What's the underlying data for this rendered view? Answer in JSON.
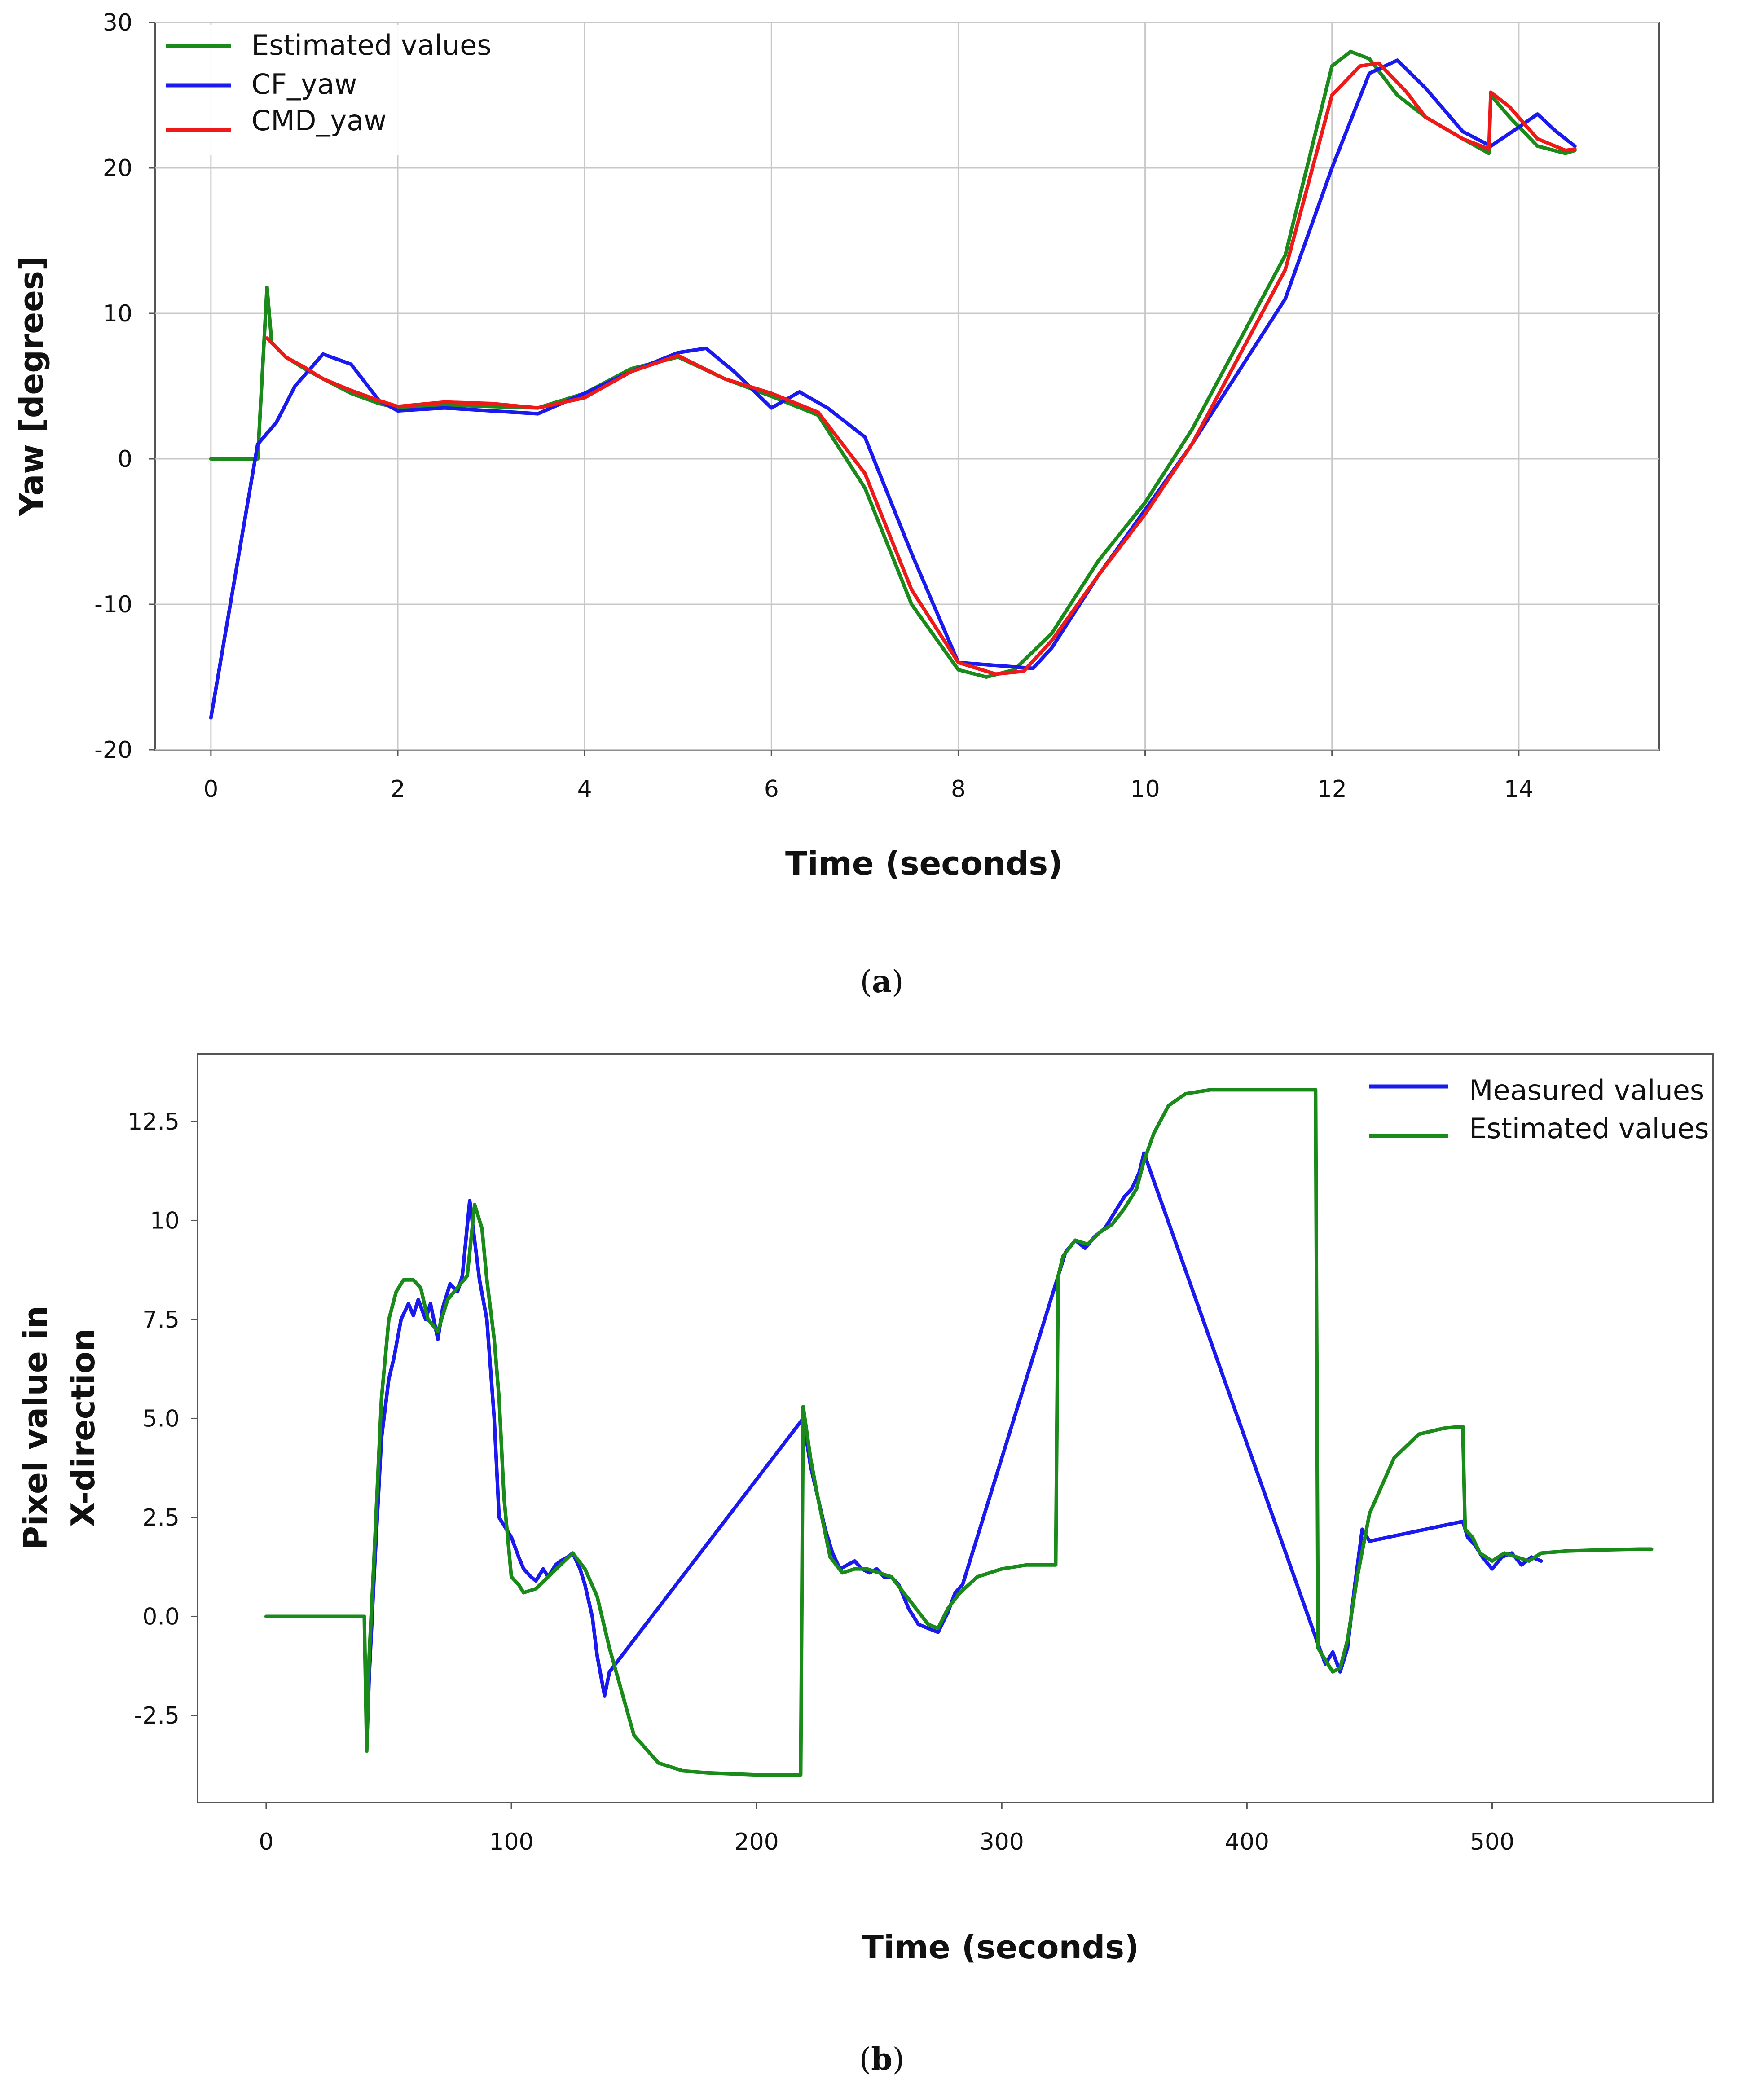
{
  "chart_data": [
    {
      "type": "line",
      "caption": "a",
      "xlabel": "Time (seconds)",
      "ylabel": "Yaw [degrees]",
      "xlim": [
        -0.6,
        15.5
      ],
      "ylim": [
        -20,
        30
      ],
      "xticks": [
        0,
        2,
        4,
        6,
        8,
        10,
        12,
        14
      ],
      "yticks": [
        -20,
        -10,
        0,
        10,
        20,
        30
      ],
      "grid": true,
      "legend_position": "top-left",
      "series": [
        {
          "name": "Estimated values",
          "color": "#1a8a1a",
          "x": [
            0,
            0.5,
            0.6,
            0.65,
            0.8,
            1.0,
            1.2,
            1.5,
            1.8,
            2.0,
            2.5,
            3.0,
            3.5,
            4.0,
            4.5,
            5.0,
            5.5,
            6.0,
            6.5,
            7.0,
            7.5,
            8.0,
            8.3,
            8.6,
            9.0,
            9.5,
            10.0,
            10.5,
            11.0,
            11.5,
            12.0,
            12.2,
            12.4,
            12.7,
            13.0,
            13.4,
            13.68,
            13.7,
            13.9,
            14.2,
            14.5,
            14.6
          ],
          "y": [
            0,
            0,
            11.8,
            8.0,
            7.0,
            6.2,
            5.5,
            4.5,
            3.8,
            3.5,
            3.7,
            3.6,
            3.5,
            4.5,
            6.2,
            7.0,
            5.5,
            4.3,
            3.0,
            -2.0,
            -10.0,
            -14.5,
            -15.0,
            -14.5,
            -12.0,
            -7.0,
            -3.0,
            2.0,
            8.0,
            14.0,
            27.0,
            28.0,
            27.5,
            25.0,
            23.5,
            22.0,
            21.0,
            25.0,
            23.5,
            21.5,
            21.0,
            21.2
          ]
        },
        {
          "name": "CF_yaw",
          "color": "#1a1aee",
          "x": [
            0,
            0.5,
            0.7,
            0.9,
            1.2,
            1.5,
            1.8,
            2.0,
            2.5,
            3.0,
            3.5,
            4.0,
            4.5,
            5.0,
            5.3,
            5.6,
            6.0,
            6.3,
            6.6,
            7.0,
            7.5,
            8.0,
            8.4,
            8.8,
            9.0,
            9.5,
            10.0,
            10.5,
            11.0,
            11.5,
            12.0,
            12.4,
            12.7,
            13.0,
            13.4,
            13.7,
            14.0,
            14.2,
            14.4,
            14.6
          ],
          "y": [
            -17.8,
            1.0,
            2.5,
            5.0,
            7.2,
            6.5,
            4.0,
            3.3,
            3.5,
            3.3,
            3.1,
            4.5,
            6.0,
            7.3,
            7.6,
            6.0,
            3.5,
            4.6,
            3.5,
            1.5,
            -6.5,
            -14.0,
            -14.2,
            -14.4,
            -13.0,
            -8.0,
            -3.5,
            1.0,
            6.0,
            11.0,
            20.0,
            26.5,
            27.4,
            25.5,
            22.5,
            21.5,
            22.8,
            23.7,
            22.5,
            21.5
          ]
        },
        {
          "name": "CMD_yaw",
          "color": "#ee1a1a",
          "x": [
            0.6,
            0.8,
            1.0,
            1.2,
            1.5,
            1.8,
            2.0,
            2.5,
            3.0,
            3.5,
            4.0,
            4.5,
            5.0,
            5.5,
            6.0,
            6.5,
            7.0,
            7.5,
            8.0,
            8.4,
            8.7,
            9.0,
            9.5,
            10.0,
            10.5,
            11.0,
            11.5,
            12.0,
            12.3,
            12.5,
            12.8,
            13.0,
            13.4,
            13.68,
            13.7,
            13.9,
            14.2,
            14.5,
            14.6
          ],
          "y": [
            8.3,
            7.0,
            6.3,
            5.5,
            4.7,
            4.0,
            3.6,
            3.9,
            3.8,
            3.5,
            4.2,
            6.0,
            7.1,
            5.5,
            4.5,
            3.2,
            -1.0,
            -9.0,
            -14.0,
            -14.8,
            -14.6,
            -12.5,
            -8.0,
            -3.8,
            1.0,
            7.0,
            13.0,
            25.0,
            27.0,
            27.2,
            25.2,
            23.5,
            22.0,
            21.3,
            25.2,
            24.2,
            22.0,
            21.2,
            21.3
          ]
        }
      ]
    },
    {
      "type": "line",
      "caption": "b",
      "xlabel": "Time (seconds)",
      "ylabel_lines": [
        "Pixel value in",
        "X-direction"
      ],
      "xlim": [
        -28,
        590
      ],
      "ylim": [
        -4.7,
        14.2
      ],
      "xticks": [
        0,
        100,
        200,
        300,
        400,
        500
      ],
      "yticks": [
        -2.5,
        0.0,
        2.5,
        5.0,
        7.5,
        10,
        12.5
      ],
      "ytick_labels": [
        "-2.5",
        "0.0",
        "2.5",
        "5.0",
        "7.5",
        "10",
        "12.5"
      ],
      "grid": false,
      "legend_position": "top-right",
      "series": [
        {
          "name": "Measured values",
          "color": "#1a1aee",
          "x": [
            41,
            42,
            44,
            47,
            50,
            52,
            55,
            58,
            60,
            62,
            65,
            67,
            70,
            72,
            75,
            78,
            80,
            83,
            85,
            87,
            90,
            93,
            95,
            97,
            100,
            103,
            105,
            108,
            110,
            113,
            115,
            118,
            120,
            123,
            125,
            128,
            130,
            133,
            135,
            138,
            140,
            219,
            222,
            225,
            228,
            231,
            234,
            237,
            240,
            243,
            246,
            249,
            252,
            255,
            258,
            262,
            266,
            270,
            274,
            278,
            281,
            284,
            323,
            326,
            330,
            334,
            338,
            342,
            346,
            350,
            353,
            356,
            358,
            429,
            432,
            435,
            438,
            441,
            444,
            447,
            450,
            488,
            490,
            493,
            496,
            500,
            504,
            508,
            512,
            516,
            520
          ],
          "y": [
            -3.3,
            -1.5,
            1.0,
            4.5,
            6.0,
            6.5,
            7.5,
            7.9,
            7.6,
            8.0,
            7.5,
            7.9,
            7.0,
            7.8,
            8.4,
            8.2,
            8.6,
            10.5,
            9.5,
            8.5,
            7.5,
            5.0,
            2.5,
            2.3,
            2.0,
            1.5,
            1.2,
            1.0,
            0.9,
            1.2,
            1.0,
            1.3,
            1.4,
            1.5,
            1.6,
            1.2,
            0.8,
            0.0,
            -1.0,
            -2.0,
            -1.4,
            5.0,
            3.8,
            3.0,
            2.2,
            1.6,
            1.2,
            1.3,
            1.4,
            1.2,
            1.1,
            1.2,
            1.0,
            1.0,
            0.8,
            0.2,
            -0.2,
            -0.3,
            -0.4,
            0.1,
            0.6,
            0.8,
            8.6,
            9.2,
            9.5,
            9.3,
            9.6,
            9.8,
            10.2,
            10.6,
            10.8,
            11.2,
            11.7,
            -0.7,
            -1.2,
            -0.9,
            -1.4,
            -0.8,
            0.8,
            2.2,
            1.9,
            2.4,
            2.0,
            1.8,
            1.5,
            1.2,
            1.5,
            1.6,
            1.3,
            1.5,
            1.4
          ]
        },
        {
          "name": "Estimated values",
          "color": "#1a8a1a",
          "x": [
            0,
            40,
            41,
            42,
            44,
            47,
            50,
            53,
            56,
            60,
            63,
            66,
            70,
            74,
            78,
            82,
            85,
            88,
            90,
            93,
            95,
            97,
            100,
            103,
            105,
            110,
            115,
            120,
            125,
            130,
            135,
            140,
            150,
            160,
            170,
            180,
            200,
            218,
            219,
            222,
            225,
            230,
            235,
            240,
            245,
            250,
            255,
            260,
            265,
            270,
            274,
            278,
            283,
            290,
            300,
            310,
            322,
            323,
            325,
            330,
            335,
            340,
            345,
            350,
            355,
            358,
            362,
            368,
            375,
            385,
            400,
            428,
            429,
            432,
            435,
            438,
            441,
            445,
            450,
            460,
            470,
            480,
            488,
            489,
            492,
            495,
            500,
            505,
            510,
            515,
            520,
            530,
            545,
            560,
            565
          ],
          "y": [
            0,
            0,
            -3.4,
            -1.0,
            1.5,
            5.5,
            7.5,
            8.2,
            8.5,
            8.5,
            8.3,
            7.5,
            7.2,
            8.0,
            8.3,
            8.6,
            10.4,
            9.8,
            8.5,
            7.0,
            5.5,
            3.0,
            1.0,
            0.8,
            0.6,
            0.7,
            1.0,
            1.3,
            1.6,
            1.2,
            0.5,
            -0.8,
            -3.0,
            -3.7,
            -3.9,
            -3.95,
            -4.0,
            -4.0,
            5.3,
            4.0,
            3.0,
            1.5,
            1.1,
            1.2,
            1.2,
            1.1,
            1.0,
            0.6,
            0.2,
            -0.2,
            -0.3,
            0.2,
            0.6,
            1.0,
            1.2,
            1.3,
            1.3,
            8.6,
            9.1,
            9.5,
            9.4,
            9.7,
            9.9,
            10.3,
            10.8,
            11.5,
            12.2,
            12.9,
            13.2,
            13.3,
            13.3,
            13.3,
            -0.8,
            -1.1,
            -1.4,
            -1.3,
            -0.6,
            1.0,
            2.6,
            4.0,
            4.6,
            4.75,
            4.8,
            2.2,
            2.0,
            1.6,
            1.4,
            1.6,
            1.5,
            1.4,
            1.6,
            1.65,
            1.68,
            1.7,
            1.7
          ]
        }
      ]
    }
  ]
}
